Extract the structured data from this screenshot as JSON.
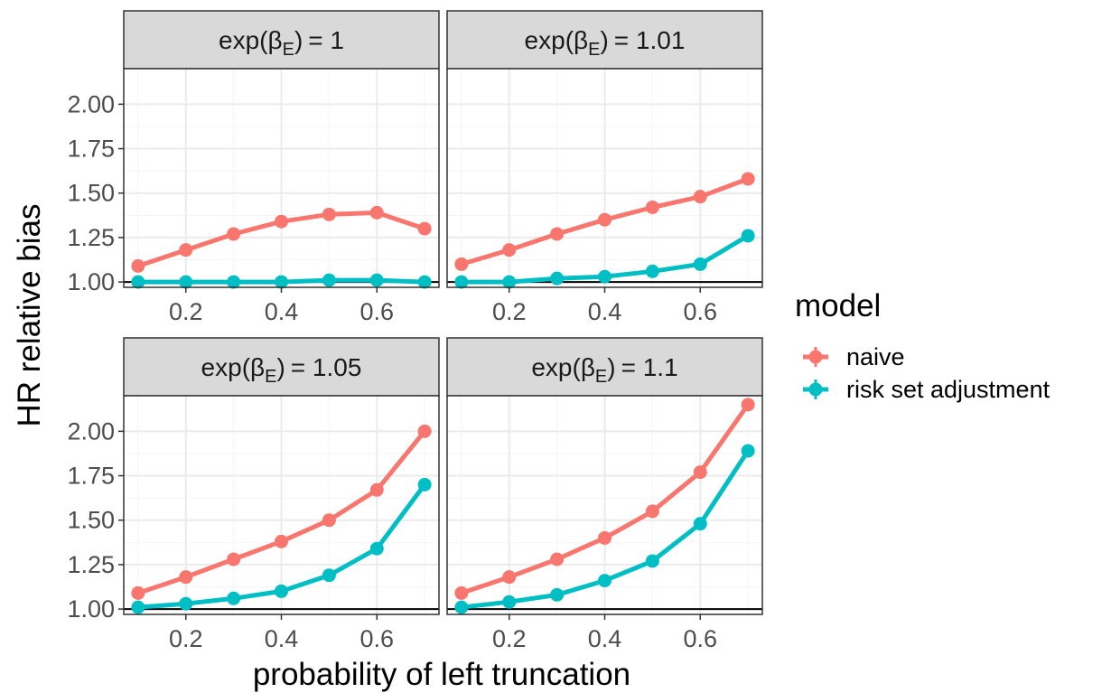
{
  "chart_data": {
    "type": "line",
    "layout": "facet-grid-2x2",
    "xlabel": "probability of left truncation",
    "ylabel": "HR relative bias",
    "x_ticks": [
      0.2,
      0.4,
      0.6
    ],
    "y_ticks": [
      1.0,
      1.25,
      1.5,
      1.75,
      2.0
    ],
    "y_tick_labels": [
      "1.00",
      "1.25",
      "1.50",
      "1.75",
      "2.00"
    ],
    "xlim": [
      0.07,
      0.73
    ],
    "ylim": [
      0.97,
      2.2
    ],
    "reference_line": 1.0,
    "grid": true,
    "legend": {
      "title": "model",
      "position": "right",
      "entries": [
        {
          "name": "naive",
          "color": "#F8766D"
        },
        {
          "name": "risk set adjustment",
          "color": "#00BFC4"
        }
      ]
    },
    "x": [
      0.1,
      0.2,
      0.3,
      0.4,
      0.5,
      0.6,
      0.7
    ],
    "panels": [
      {
        "strip": {
          "prefix": "exp",
          "symbol": "β",
          "subscript": "E",
          "value": "= 1"
        },
        "series": [
          {
            "name": "naive",
            "values": [
              1.09,
              1.18,
              1.27,
              1.34,
              1.38,
              1.39,
              1.3
            ]
          },
          {
            "name": "risk set adjustment",
            "values": [
              1.0,
              1.0,
              1.0,
              1.0,
              1.01,
              1.01,
              1.0
            ]
          }
        ]
      },
      {
        "strip": {
          "prefix": "exp",
          "symbol": "β",
          "subscript": "E",
          "value": "= 1.01"
        },
        "series": [
          {
            "name": "naive",
            "values": [
              1.1,
              1.18,
              1.27,
              1.35,
              1.42,
              1.48,
              1.58
            ]
          },
          {
            "name": "risk set adjustment",
            "values": [
              1.0,
              1.0,
              1.02,
              1.03,
              1.06,
              1.1,
              1.26
            ]
          }
        ]
      },
      {
        "strip": {
          "prefix": "exp",
          "symbol": "β",
          "subscript": "E",
          "value": "= 1.05"
        },
        "series": [
          {
            "name": "naive",
            "values": [
              1.09,
              1.18,
              1.28,
              1.38,
              1.5,
              1.67,
              2.0
            ]
          },
          {
            "name": "risk set adjustment",
            "values": [
              1.01,
              1.03,
              1.06,
              1.1,
              1.19,
              1.34,
              1.7
            ]
          }
        ]
      },
      {
        "strip": {
          "prefix": "exp",
          "symbol": "β",
          "subscript": "E",
          "value": "= 1.1"
        },
        "series": [
          {
            "name": "naive",
            "values": [
              1.09,
              1.18,
              1.28,
              1.4,
              1.55,
              1.77,
              2.15
            ]
          },
          {
            "name": "risk set adjustment",
            "values": [
              1.01,
              1.04,
              1.08,
              1.16,
              1.27,
              1.48,
              1.89
            ]
          }
        ]
      }
    ]
  }
}
